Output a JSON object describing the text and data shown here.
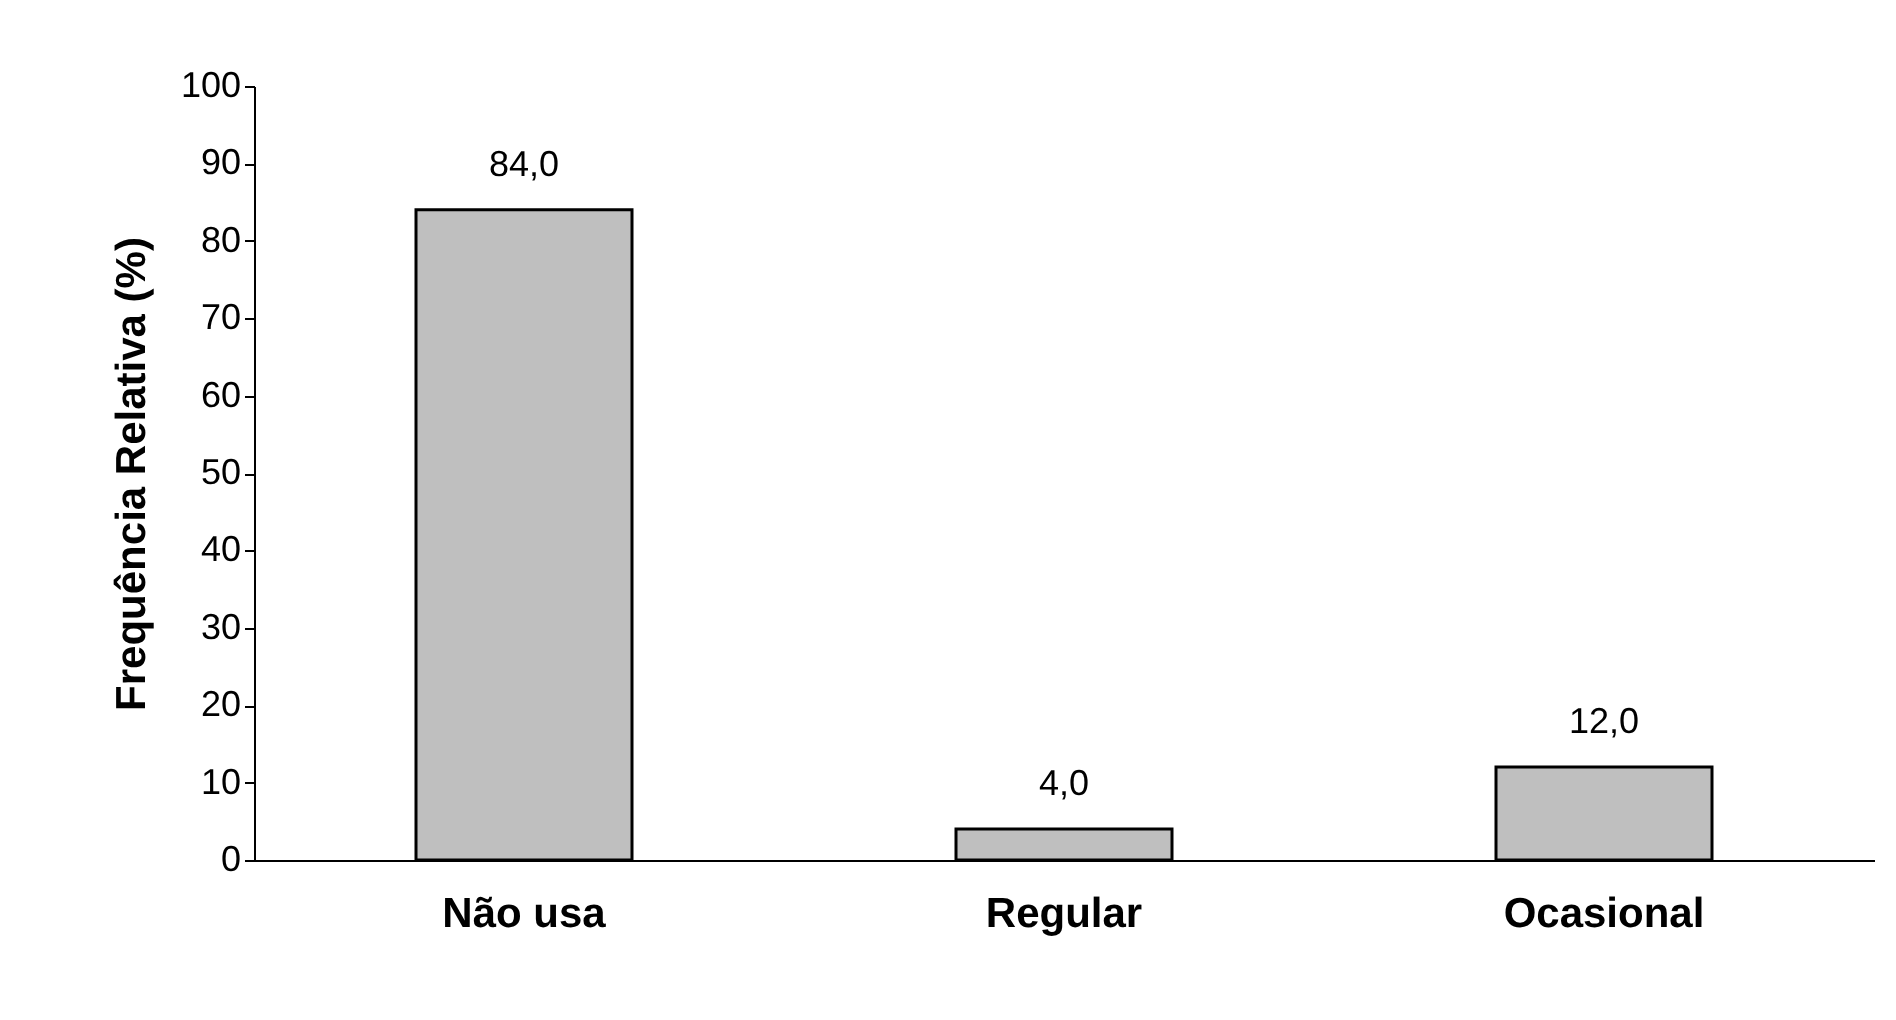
{
  "chart_data": {
    "type": "bar",
    "ylabel": "Frequência Relativa (%)",
    "categories": [
      "Não usa",
      "Regular",
      "Ocasional"
    ],
    "values": [
      84.0,
      4.0,
      12.0
    ],
    "value_labels": [
      "84,0",
      "4,0",
      "12,0"
    ],
    "color": "#bfbfbf",
    "ylim": [
      0,
      100
    ],
    "yticks": [
      0,
      10,
      20,
      30,
      40,
      50,
      60,
      70,
      80,
      90,
      100
    ],
    "grid": false
  }
}
